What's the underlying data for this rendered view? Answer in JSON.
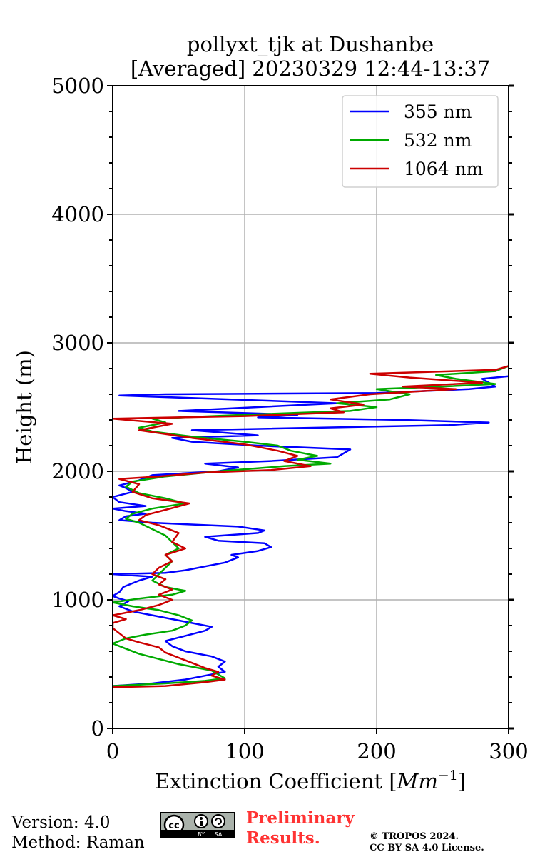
{
  "chart_data": {
    "type": "line",
    "title": "pollyxt_tjk at Dushanbe",
    "subtitle": "[Averaged] 20230329 12:44-13:37",
    "xlabel_prefix": "Extinction Coefficient [",
    "xlabel_unit": "Mm",
    "xlabel_exp": "−1",
    "xlabel_suffix": "]",
    "ylabel": "Height (m)",
    "xlim": [
      0,
      300
    ],
    "ylim": [
      0,
      5000
    ],
    "xticks": [
      0,
      100,
      200,
      300
    ],
    "yticks": [
      0,
      1000,
      2000,
      3000,
      4000,
      5000
    ],
    "grid": true,
    "legend_position": "top-right",
    "series": [
      {
        "name": "355 nm",
        "color": "#0000ff",
        "points": [
          [
            0,
            330
          ],
          [
            30,
            350
          ],
          [
            55,
            380
          ],
          [
            70,
            410
          ],
          [
            85,
            440
          ],
          [
            80,
            480
          ],
          [
            85,
            520
          ],
          [
            75,
            560
          ],
          [
            55,
            600
          ],
          [
            45,
            640
          ],
          [
            40,
            680
          ],
          [
            55,
            720
          ],
          [
            70,
            760
          ],
          [
            75,
            790
          ],
          [
            60,
            820
          ],
          [
            45,
            850
          ],
          [
            30,
            880
          ],
          [
            15,
            910
          ],
          [
            5,
            950
          ],
          [
            12,
            990
          ],
          [
            5,
            1010
          ],
          [
            0,
            1030
          ],
          [
            5,
            1060
          ],
          [
            8,
            1100
          ],
          [
            20,
            1150
          ],
          [
            30,
            1180
          ],
          [
            0,
            1200
          ],
          [
            40,
            1210
          ],
          [
            55,
            1230
          ],
          [
            70,
            1260
          ],
          [
            85,
            1290
          ],
          [
            90,
            1310
          ],
          [
            95,
            1330
          ],
          [
            90,
            1350
          ],
          [
            110,
            1380
          ],
          [
            120,
            1410
          ],
          [
            115,
            1440
          ],
          [
            80,
            1460
          ],
          [
            70,
            1490
          ],
          [
            110,
            1520
          ],
          [
            115,
            1540
          ],
          [
            95,
            1570
          ],
          [
            30,
            1600
          ],
          [
            5,
            1620
          ],
          [
            10,
            1650
          ],
          [
            25,
            1670
          ],
          [
            10,
            1690
          ],
          [
            0,
            1710
          ],
          [
            25,
            1730
          ],
          [
            5,
            1760
          ],
          [
            0,
            1800
          ],
          [
            15,
            1840
          ],
          [
            10,
            1870
          ],
          [
            5,
            1890
          ],
          [
            20,
            1930
          ],
          [
            30,
            1970
          ],
          [
            80,
            2000
          ],
          [
            95,
            2030
          ],
          [
            70,
            2060
          ],
          [
            120,
            2080
          ],
          [
            170,
            2110
          ],
          [
            180,
            2170
          ],
          [
            110,
            2200
          ],
          [
            60,
            2230
          ],
          [
            45,
            2260
          ],
          [
            110,
            2280
          ],
          [
            60,
            2320
          ],
          [
            255,
            2360
          ],
          [
            285,
            2380
          ],
          [
            220,
            2400
          ],
          [
            110,
            2420
          ],
          [
            140,
            2440
          ],
          [
            50,
            2470
          ],
          [
            110,
            2500
          ],
          [
            170,
            2530
          ],
          [
            90,
            2560
          ],
          [
            5,
            2590
          ],
          [
            40,
            2600
          ],
          [
            200,
            2610
          ],
          [
            270,
            2640
          ],
          [
            290,
            2660
          ],
          [
            285,
            2690
          ],
          [
            280,
            2720
          ],
          [
            300,
            2740
          ]
        ]
      },
      {
        "name": "532 nm",
        "color": "#00aa00",
        "points": [
          [
            0,
            330
          ],
          [
            40,
            350
          ],
          [
            70,
            370
          ],
          [
            85,
            390
          ],
          [
            80,
            420
          ],
          [
            75,
            450
          ],
          [
            50,
            500
          ],
          [
            35,
            540
          ],
          [
            20,
            580
          ],
          [
            10,
            620
          ],
          [
            0,
            660
          ],
          [
            10,
            700
          ],
          [
            25,
            730
          ],
          [
            45,
            760
          ],
          [
            55,
            800
          ],
          [
            60,
            840
          ],
          [
            50,
            880
          ],
          [
            35,
            920
          ],
          [
            15,
            950
          ],
          [
            0,
            980
          ],
          [
            20,
            1010
          ],
          [
            45,
            1040
          ],
          [
            55,
            1070
          ],
          [
            40,
            1100
          ],
          [
            30,
            1150
          ],
          [
            35,
            1200
          ],
          [
            40,
            1250
          ],
          [
            45,
            1300
          ],
          [
            40,
            1350
          ],
          [
            50,
            1400
          ],
          [
            45,
            1450
          ],
          [
            40,
            1500
          ],
          [
            30,
            1550
          ],
          [
            20,
            1600
          ],
          [
            10,
            1630
          ],
          [
            15,
            1670
          ],
          [
            30,
            1710
          ],
          [
            55,
            1750
          ],
          [
            40,
            1790
          ],
          [
            20,
            1830
          ],
          [
            10,
            1880
          ],
          [
            15,
            1920
          ],
          [
            40,
            1960
          ],
          [
            80,
            2000
          ],
          [
            130,
            2040
          ],
          [
            165,
            2060
          ],
          [
            140,
            2090
          ],
          [
            155,
            2120
          ],
          [
            135,
            2160
          ],
          [
            125,
            2200
          ],
          [
            100,
            2230
          ],
          [
            60,
            2270
          ],
          [
            30,
            2310
          ],
          [
            20,
            2340
          ],
          [
            40,
            2380
          ],
          [
            30,
            2410
          ],
          [
            100,
            2440
          ],
          [
            180,
            2470
          ],
          [
            200,
            2500
          ],
          [
            170,
            2530
          ],
          [
            210,
            2560
          ],
          [
            225,
            2600
          ],
          [
            200,
            2640
          ],
          [
            250,
            2660
          ],
          [
            290,
            2680
          ],
          [
            275,
            2700
          ],
          [
            260,
            2720
          ],
          [
            245,
            2750
          ],
          [
            290,
            2780
          ],
          [
            300,
            2820
          ]
        ]
      },
      {
        "name": "1064 nm",
        "color": "#cc0000",
        "points": [
          [
            0,
            320
          ],
          [
            40,
            330
          ],
          [
            70,
            360
          ],
          [
            85,
            380
          ],
          [
            75,
            410
          ],
          [
            80,
            440
          ],
          [
            70,
            470
          ],
          [
            60,
            510
          ],
          [
            50,
            550
          ],
          [
            40,
            590
          ],
          [
            35,
            630
          ],
          [
            20,
            670
          ],
          [
            10,
            700
          ],
          [
            5,
            740
          ],
          [
            0,
            780
          ],
          [
            0,
            820
          ],
          [
            10,
            850
          ],
          [
            0,
            880
          ],
          [
            20,
            920
          ],
          [
            35,
            960
          ],
          [
            45,
            1000
          ],
          [
            35,
            1040
          ],
          [
            45,
            1080
          ],
          [
            35,
            1120
          ],
          [
            40,
            1160
          ],
          [
            30,
            1200
          ],
          [
            35,
            1250
          ],
          [
            45,
            1300
          ],
          [
            40,
            1350
          ],
          [
            55,
            1400
          ],
          [
            45,
            1450
          ],
          [
            50,
            1520
          ],
          [
            35,
            1580
          ],
          [
            20,
            1620
          ],
          [
            25,
            1660
          ],
          [
            40,
            1700
          ],
          [
            58,
            1750
          ],
          [
            30,
            1790
          ],
          [
            15,
            1840
          ],
          [
            20,
            1900
          ],
          [
            5,
            1940
          ],
          [
            35,
            1960
          ],
          [
            70,
            1990
          ],
          [
            120,
            2010
          ],
          [
            150,
            2040
          ],
          [
            130,
            2080
          ],
          [
            140,
            2120
          ],
          [
            125,
            2160
          ],
          [
            100,
            2210
          ],
          [
            60,
            2260
          ],
          [
            20,
            2320
          ],
          [
            45,
            2370
          ],
          [
            0,
            2410
          ],
          [
            100,
            2430
          ],
          [
            175,
            2460
          ],
          [
            165,
            2490
          ],
          [
            190,
            2520
          ],
          [
            165,
            2560
          ],
          [
            195,
            2600
          ],
          [
            260,
            2640
          ],
          [
            220,
            2660
          ],
          [
            280,
            2690
          ],
          [
            225,
            2730
          ],
          [
            195,
            2760
          ],
          [
            290,
            2790
          ],
          [
            300,
            2820
          ]
        ]
      }
    ]
  },
  "footer": {
    "version": "Version: 4.0",
    "method": "Method: Raman",
    "preliminary_line1": "Preliminary",
    "preliminary_line2": "Results.",
    "copyright_line1": "© TROPOS 2024.",
    "copyright_line2": "CC BY SA 4.0 License.",
    "cc_badge_text": "cc",
    "cc_by": "BY",
    "cc_sa": "SA"
  }
}
